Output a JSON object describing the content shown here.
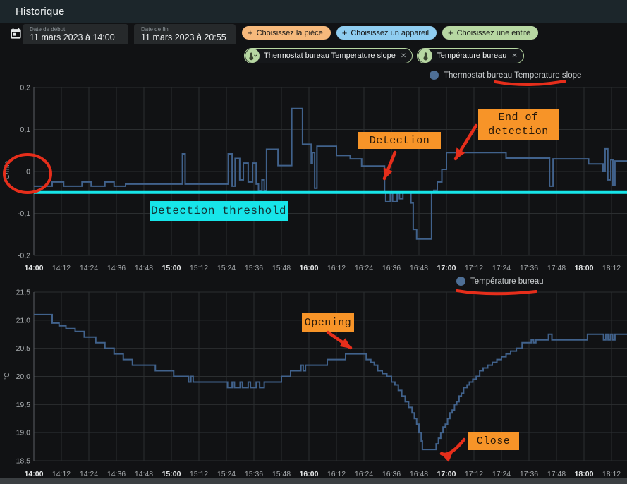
{
  "header": {
    "title": "Historique"
  },
  "toolbar": {
    "start_date": {
      "label": "Date de début",
      "value": "11 mars 2023 à 14:00"
    },
    "end_date": {
      "label": "Date de fin",
      "value": "11 mars 2023 à 20:55"
    },
    "filter_chips": [
      {
        "label": "Choisissez la pièce",
        "plus": "+",
        "color": "#f6b97c"
      },
      {
        "label": "Choisissez un appareil",
        "plus": "+",
        "color": "#8fcdf0"
      },
      {
        "label": "Choisissez une entité",
        "plus": "+",
        "color": "#b7d7a2"
      }
    ],
    "entity_chips": [
      {
        "label": "Thermostat bureau Temperature slope",
        "icon": "thermometer-chevron-icon",
        "close": "✕"
      },
      {
        "label": "Température bureau",
        "icon": "thermometer-icon",
        "close": "✕"
      }
    ]
  },
  "annotations": {
    "detection_label": "Detection",
    "end_of_detection_label": "End of\ndetection",
    "opening_label": "Opening",
    "close_label": "Close"
  },
  "colors": {
    "line": "#41628c",
    "legend_dot": "#4e6f96",
    "threshold_cyan": "#17e5e9",
    "annotation_orange": "#f79428",
    "annotation_red": "#e62e1b",
    "header_bg": "#1c262b",
    "background": "#111214"
  },
  "chart_data": [
    {
      "type": "line",
      "line_style": "step-after",
      "legend": {
        "label": "Thermostat bureau Temperature slope",
        "dot_color": "#4e6f96"
      },
      "ylabel": "°C/min",
      "ylim": [
        -0.2,
        0.2
      ],
      "grid": true,
      "legend_position": "top-right",
      "yticks": [
        {
          "v": 0.2,
          "label": "0,2"
        },
        {
          "v": 0.1,
          "label": "0,1"
        },
        {
          "v": 0,
          "label": "0"
        },
        {
          "v": -0.1,
          "label": "-0,1"
        },
        {
          "v": -0.2,
          "label": "-0,2"
        }
      ],
      "x_start": "14:00",
      "x_tick_labels": [
        "14:00",
        "14:12",
        "14:24",
        "14:36",
        "14:48",
        "15:00",
        "15:12",
        "15:24",
        "15:36",
        "15:48",
        "16:00",
        "16:12",
        "16:24",
        "16:36",
        "16:48",
        "17:00",
        "17:12",
        "17:24",
        "17:36",
        "17:48",
        "18:00",
        "18:12"
      ],
      "threshold": {
        "label": "Detection threshold",
        "value": -0.05,
        "color": "#17e5e9"
      },
      "series": [
        {
          "name": "Thermostat bureau Temperature slope",
          "x_unit": "minutes_after_14:00",
          "points": [
            [
              0,
              -0.035
            ],
            [
              8,
              -0.025
            ],
            [
              13,
              -0.035
            ],
            [
              21,
              -0.025
            ],
            [
              25,
              -0.035
            ],
            [
              31,
              -0.025
            ],
            [
              35,
              -0.035
            ],
            [
              40,
              -0.03
            ],
            [
              63,
              -0.03
            ],
            [
              64.8,
              0.042
            ],
            [
              66,
              -0.03
            ],
            [
              84.8,
              0.042
            ],
            [
              86.5,
              -0.035
            ],
            [
              87.8,
              0.031
            ],
            [
              89.8,
              -0.02
            ],
            [
              91.4,
              0.02
            ],
            [
              93.5,
              -0.025
            ],
            [
              95.4,
              0.02
            ],
            [
              97,
              -0.03
            ],
            [
              98,
              -0.047
            ],
            [
              99.5,
              -0.02
            ],
            [
              100.5,
              -0.047
            ],
            [
              101.5,
              0.053
            ],
            [
              106,
              0.053
            ],
            [
              106.5,
              0.014
            ],
            [
              112.3,
              0.014
            ],
            [
              112.5,
              0.15
            ],
            [
              116.9,
              0.15
            ],
            [
              117.2,
              0.065
            ],
            [
              120.5,
              0.065
            ],
            [
              121,
              0.02
            ],
            [
              121.5,
              0.045
            ],
            [
              122.5,
              -0.04
            ],
            [
              123.5,
              0.06
            ],
            [
              131,
              0.06
            ],
            [
              132,
              0.038
            ],
            [
              137,
              0.038
            ],
            [
              138,
              0.03
            ],
            [
              142,
              0.03
            ],
            [
              143,
              0.013
            ],
            [
              152.5,
              0.013
            ],
            [
              153,
              -0.05
            ],
            [
              153.5,
              -0.072
            ],
            [
              155.5,
              -0.05
            ],
            [
              156.5,
              -0.072
            ],
            [
              158.5,
              -0.05
            ],
            [
              159.5,
              -0.065
            ],
            [
              161,
              -0.05
            ],
            [
              164.5,
              -0.075
            ],
            [
              165.5,
              -0.138
            ],
            [
              167,
              -0.161
            ],
            [
              173,
              -0.161
            ],
            [
              173.5,
              -0.05
            ],
            [
              174.5,
              -0.045
            ],
            [
              176,
              -0.025
            ],
            [
              178,
              0.005
            ],
            [
              180,
              0.045
            ],
            [
              205,
              0.045
            ],
            [
              206,
              0.032
            ],
            [
              224.5,
              0.032
            ],
            [
              225,
              -0.035
            ],
            [
              226.5,
              0.03
            ],
            [
              242,
              0.018
            ],
            [
              248.3,
              0
            ],
            [
              249.2,
              0.054
            ],
            [
              250.4,
              -0.02
            ],
            [
              251.7,
              0.028
            ],
            [
              252.6,
              -0.033
            ],
            [
              253.5,
              0.025
            ],
            [
              259,
              0.025
            ]
          ]
        }
      ]
    },
    {
      "type": "line",
      "line_style": "step-after",
      "legend": {
        "label": "Température bureau",
        "dot_color": "#4e6f96"
      },
      "ylabel": "°C",
      "ylim": [
        18.5,
        21.5
      ],
      "grid": true,
      "legend_position": "top-center",
      "yticks": [
        {
          "v": 21.5,
          "label": "21,5"
        },
        {
          "v": 21.0,
          "label": "21,0"
        },
        {
          "v": 20.5,
          "label": "20,5"
        },
        {
          "v": 20.0,
          "label": "20,0"
        },
        {
          "v": 19.5,
          "label": "19,5"
        },
        {
          "v": 19.0,
          "label": "19,0"
        },
        {
          "v": 18.5,
          "label": "18,5"
        }
      ],
      "x_start": "14:00",
      "x_tick_labels": [
        "14:00",
        "14:12",
        "14:24",
        "14:36",
        "14:48",
        "15:00",
        "15:12",
        "15:24",
        "15:36",
        "15:48",
        "16:00",
        "16:12",
        "16:24",
        "16:36",
        "16:48",
        "17:00",
        "17:12",
        "17:24",
        "17:36",
        "17:48",
        "18:00",
        "18:12"
      ],
      "series": [
        {
          "name": "Température bureau",
          "x_unit": "minutes_after_14:00",
          "points": [
            [
              0,
              21.1
            ],
            [
              7,
              21.1
            ],
            [
              8,
              20.95
            ],
            [
              11,
              20.9
            ],
            [
              14,
              20.85
            ],
            [
              18,
              20.8
            ],
            [
              22,
              20.7
            ],
            [
              27,
              20.6
            ],
            [
              31,
              20.5
            ],
            [
              35,
              20.4
            ],
            [
              39,
              20.3
            ],
            [
              43,
              20.2
            ],
            [
              52,
              20.2
            ],
            [
              53,
              20.1
            ],
            [
              60,
              20.1
            ],
            [
              61,
              20.0
            ],
            [
              67,
              20.0
            ],
            [
              67.5,
              19.9
            ],
            [
              68.5,
              20.0
            ],
            [
              69.5,
              19.9
            ],
            [
              84,
              19.9
            ],
            [
              84.5,
              19.8
            ],
            [
              86,
              19.8
            ],
            [
              86.5,
              19.9
            ],
            [
              87.5,
              19.8
            ],
            [
              89.5,
              19.8
            ],
            [
              90,
              19.9
            ],
            [
              91,
              19.8
            ],
            [
              93,
              19.8
            ],
            [
              93.5,
              19.9
            ],
            [
              94.5,
              19.8
            ],
            [
              96.5,
              19.8
            ],
            [
              97,
              19.9
            ],
            [
              98.5,
              19.8
            ],
            [
              100,
              19.8
            ],
            [
              100.5,
              19.9
            ],
            [
              107,
              19.9
            ],
            [
              108,
              20.0
            ],
            [
              111,
              20.0
            ],
            [
              112,
              20.1
            ],
            [
              116,
              20.1
            ],
            [
              116.5,
              20.2
            ],
            [
              117.5,
              20.1
            ],
            [
              118.5,
              20.2
            ],
            [
              127,
              20.2
            ],
            [
              128,
              20.3
            ],
            [
              135,
              20.3
            ],
            [
              136,
              20.4
            ],
            [
              144,
              20.4
            ],
            [
              145,
              20.3
            ],
            [
              147,
              20.25
            ],
            [
              148.5,
              20.2
            ],
            [
              150,
              20.1
            ],
            [
              152,
              20.05
            ],
            [
              154,
              20.0
            ],
            [
              156,
              19.9
            ],
            [
              157.5,
              19.85
            ],
            [
              159,
              19.75
            ],
            [
              160.5,
              19.65
            ],
            [
              162,
              19.55
            ],
            [
              163.5,
              19.45
            ],
            [
              165,
              19.35
            ],
            [
              166,
              19.25
            ],
            [
              167,
              19.15
            ],
            [
              168,
              19.0
            ],
            [
              169,
              18.85
            ],
            [
              169.5,
              18.7
            ],
            [
              175,
              18.7
            ],
            [
              175.5,
              18.8
            ],
            [
              176.5,
              18.9
            ],
            [
              177.5,
              19.0
            ],
            [
              178.5,
              19.1
            ],
            [
              179.5,
              19.15
            ],
            [
              180.5,
              19.25
            ],
            [
              181.5,
              19.35
            ],
            [
              182.5,
              19.4
            ],
            [
              183.5,
              19.5
            ],
            [
              184.5,
              19.55
            ],
            [
              185.5,
              19.65
            ],
            [
              186.5,
              19.7
            ],
            [
              187.5,
              19.8
            ],
            [
              189,
              19.85
            ],
            [
              190,
              19.9
            ],
            [
              191.5,
              19.95
            ],
            [
              193,
              20.0
            ],
            [
              194.5,
              20.1
            ],
            [
              196,
              20.15
            ],
            [
              198,
              20.2
            ],
            [
              200,
              20.25
            ],
            [
              202,
              20.3
            ],
            [
              204,
              20.35
            ],
            [
              206,
              20.4
            ],
            [
              208,
              20.45
            ],
            [
              210.5,
              20.5
            ],
            [
              213,
              20.6
            ],
            [
              216.5,
              20.6
            ],
            [
              217,
              20.65
            ],
            [
              218,
              20.6
            ],
            [
              219,
              20.65
            ],
            [
              224.5,
              20.75
            ],
            [
              226,
              20.65
            ],
            [
              241,
              20.65
            ],
            [
              241.5,
              20.75
            ],
            [
              248,
              20.75
            ],
            [
              248.5,
              20.65
            ],
            [
              249.5,
              20.75
            ],
            [
              250.5,
              20.65
            ],
            [
              251.5,
              20.75
            ],
            [
              252.5,
              20.65
            ],
            [
              253.5,
              20.75
            ],
            [
              259,
              20.75
            ]
          ]
        }
      ]
    }
  ]
}
